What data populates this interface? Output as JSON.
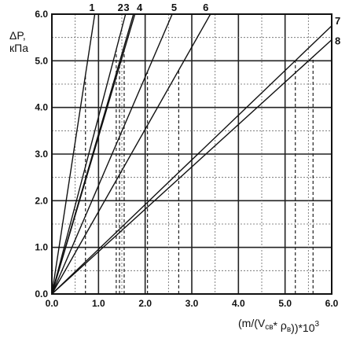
{
  "chart_data": {
    "type": "line",
    "title": "",
    "ylabel": "ΔP,\nкПа",
    "xlabel": "(m/(V_св* ρ_в))*10^3",
    "xlim": [
      0,
      6.0
    ],
    "ylim": [
      0,
      6.0
    ],
    "grid": true,
    "x_ticks": [
      "0.0",
      "1.0",
      "2.0",
      "3.0",
      "4.0",
      "5.0",
      "6.0"
    ],
    "y_ticks": [
      "0.0",
      "1.0",
      "2.0",
      "3.0",
      "4.0",
      "5.0",
      "6.0"
    ],
    "series": [
      {
        "name": "1",
        "x": [
          0,
          0.92
        ],
        "y": [
          0,
          6.0
        ],
        "marker_x": 0.72
      },
      {
        "name": "2",
        "x": [
          0,
          1.58
        ],
        "y": [
          0,
          6.0
        ],
        "marker_x": 1.38
      },
      {
        "name": "3",
        "x": [
          0,
          1.75
        ],
        "y": [
          0,
          6.0
        ],
        "marker_x": 1.45
      },
      {
        "name": "4",
        "x": [
          0,
          1.78
        ],
        "y": [
          0,
          6.0
        ],
        "marker_x": 1.55
      },
      {
        "name": "5",
        "x": [
          0,
          2.58
        ],
        "y": [
          0,
          6.0
        ],
        "marker_x": 2.05
      },
      {
        "name": "6",
        "x": [
          0,
          3.4
        ],
        "y": [
          0,
          6.0
        ],
        "marker_x": 2.72
      },
      {
        "name": "7",
        "x": [
          0,
          6.0
        ],
        "y": [
          0,
          5.75
        ],
        "marker_x": 5.22
      },
      {
        "name": "8",
        "x": [
          0,
          6.0
        ],
        "y": [
          0,
          5.45
        ],
        "marker_x": 5.6
      }
    ]
  }
}
